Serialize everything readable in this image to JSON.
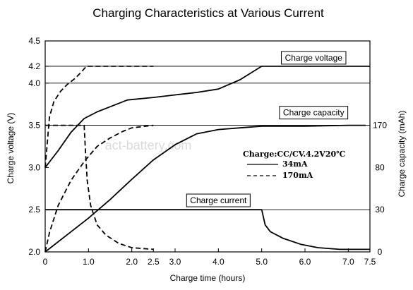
{
  "chart_data": {
    "type": "line",
    "title": "Charging Characteristics at Various Current",
    "xlabel": "Charge time (hours)",
    "ylabel": "Charge voltage (V)",
    "y2label": "Charge capacity (mAh)",
    "watermark": "act-battery.com",
    "xlim": [
      0,
      7.5
    ],
    "ylim": [
      2.0,
      4.5
    ],
    "x_ticks": [
      {
        "value": 0,
        "label": "0"
      },
      {
        "value": 1.0,
        "label": "1.0"
      },
      {
        "value": 2.0,
        "label": "2.0"
      },
      {
        "value": 2.5,
        "label": "2.5"
      },
      {
        "value": 3.0,
        "label": "3.0"
      },
      {
        "value": 4.0,
        "label": "4.0"
      },
      {
        "value": 5.0,
        "label": "5.0"
      },
      {
        "value": 6.0,
        "label": "6.0"
      },
      {
        "value": 7.0,
        "label": "7.0"
      },
      {
        "value": 7.5,
        "label": "7.5"
      }
    ],
    "y_ticks": [
      {
        "value": 2.0,
        "label": "2.0"
      },
      {
        "value": 2.5,
        "label": "2.5"
      },
      {
        "value": 3.0,
        "label": "3.0"
      },
      {
        "value": 3.5,
        "label": "3.5"
      },
      {
        "value": 4.0,
        "label": "4.0"
      },
      {
        "value": 4.2,
        "label": "4.2"
      },
      {
        "value": 4.5,
        "label": "4.5"
      }
    ],
    "y2_ticks": [
      {
        "value": 170,
        "label": "170",
        "at_y": 3.5
      },
      {
        "value": 80,
        "label": "80",
        "at_y": 3.0
      },
      {
        "value": 30,
        "label": "30",
        "at_y": 2.5
      },
      {
        "value": 0,
        "label": "0",
        "at_y": 2.0
      }
    ],
    "h_ref_lines": [
      4.2,
      4.0,
      3.5,
      2.5
    ],
    "grid": false,
    "annotations": [
      {
        "text": "Charge voltage",
        "x": 6.2,
        "y": 4.3
      },
      {
        "text": "Charge capacity",
        "x": 6.2,
        "y": 3.65
      },
      {
        "text": "Charge current",
        "x": 4.0,
        "y": 2.61
      }
    ],
    "legend": {
      "title": "Charge:CC/CV.4.2V20℃",
      "placement": "right",
      "entries": [
        {
          "label": "34mA",
          "style": "solid"
        },
        {
          "label": "170mA",
          "style": "dashed"
        }
      ]
    },
    "series": [
      {
        "style": "solid",
        "x": [
          0,
          0.3,
          0.6,
          0.9,
          1.2,
          1.5,
          1.9,
          2.5,
          3.0,
          3.5,
          4.0,
          4.5,
          5.0,
          7.5
        ],
        "y": [
          3.0,
          3.2,
          3.42,
          3.58,
          3.66,
          3.72,
          3.8,
          3.83,
          3.86,
          3.89,
          3.93,
          4.04,
          4.2,
          4.2
        ]
      },
      {
        "style": "solid",
        "x": [
          0,
          0.5,
          1.0,
          1.5,
          2.0,
          2.5,
          3.0,
          3.5,
          4.0,
          4.5,
          5.0,
          6.0,
          7.0,
          7.4
        ],
        "y": [
          2.0,
          2.2,
          2.4,
          2.62,
          2.86,
          3.09,
          3.27,
          3.4,
          3.45,
          3.47,
          3.49,
          3.49,
          3.5,
          3.5
        ]
      },
      {
        "style": "solid",
        "x": [
          0,
          5.0,
          5.08,
          5.2,
          5.5,
          5.9,
          6.3,
          6.8,
          7.5
        ],
        "y": [
          2.5,
          2.5,
          2.32,
          2.24,
          2.16,
          2.09,
          2.05,
          2.03,
          2.03
        ]
      },
      {
        "style": "dashed",
        "x": [
          0,
          0.1,
          0.2,
          0.35,
          0.5,
          0.7,
          0.85,
          0.95,
          2.5
        ],
        "y": [
          3.0,
          3.6,
          3.78,
          3.9,
          3.98,
          4.06,
          4.14,
          4.2,
          4.2
        ]
      },
      {
        "style": "dashed",
        "x": [
          0,
          0.1,
          0.3,
          0.6,
          0.9,
          1.2,
          1.5,
          1.8,
          2.0,
          2.5
        ],
        "y": [
          2.0,
          2.23,
          2.55,
          2.85,
          3.07,
          3.25,
          3.35,
          3.43,
          3.47,
          3.5
        ]
      },
      {
        "style": "dashed",
        "x": [
          0,
          0.9,
          0.93,
          0.97,
          1.05,
          1.2,
          1.4,
          1.7,
          2.0,
          2.5
        ],
        "y": [
          3.5,
          3.5,
          3.2,
          2.85,
          2.55,
          2.32,
          2.2,
          2.1,
          2.05,
          2.03
        ]
      }
    ]
  }
}
